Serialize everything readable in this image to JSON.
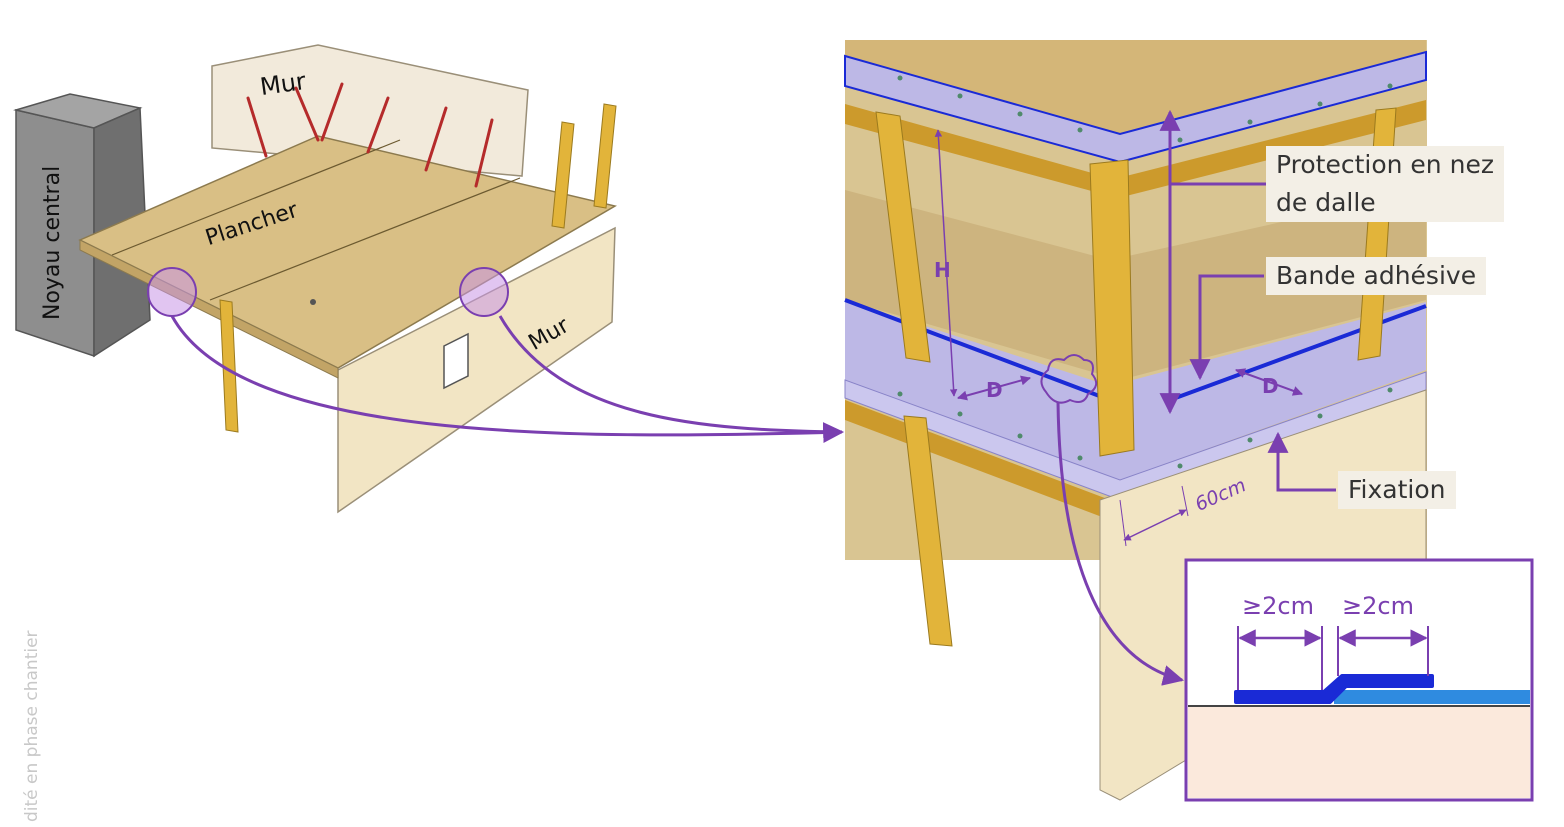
{
  "left_diagram": {
    "labels": {
      "noyau_central": "Noyau central",
      "mur_top": "Mur",
      "plancher": "Plancher",
      "mur_right": "Mur"
    }
  },
  "right_diagram": {
    "labels": {
      "h": "H",
      "d_left": "D",
      "d_right": "D",
      "spacing": "60cm"
    },
    "callouts": {
      "protection_line1": "Protection en nez",
      "protection_line2": "de dalle",
      "bande": "Bande adhésive",
      "fixation": "Fixation"
    }
  },
  "detail_inset": {
    "overlap_left": "≥2cm",
    "overlap_right": "≥2cm"
  },
  "side_note": "dité en phase chantier",
  "colors": {
    "purple": "#7a3fb0",
    "wood": "#d9bf85",
    "wall": "#efe3c1",
    "post": "#e2b43a",
    "protection": "#bdb8e6",
    "tape": "#1a2ad6",
    "tape_light": "#2f8be0",
    "core": "#8e8e8e"
  }
}
